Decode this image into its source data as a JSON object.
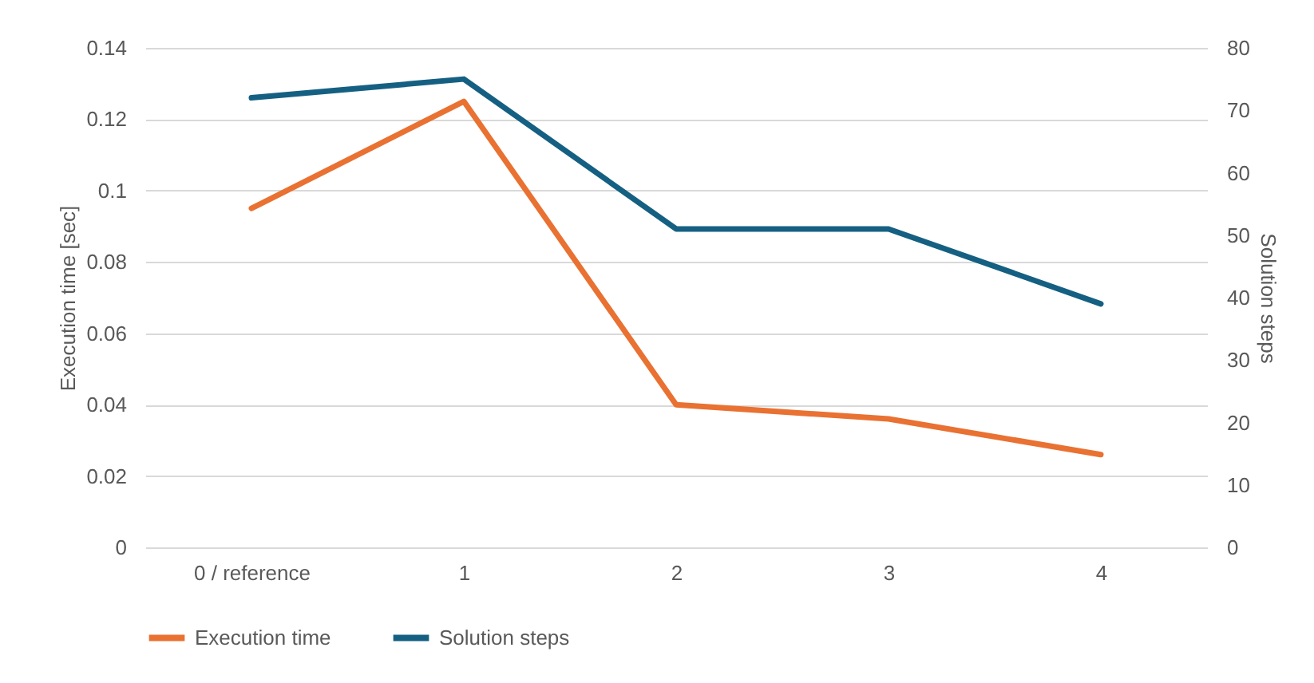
{
  "chart_data": {
    "type": "line",
    "categories": [
      "0 / reference",
      "1",
      "2",
      "3",
      "4"
    ],
    "series": [
      {
        "name": "Execution time",
        "color": "#e97132",
        "values": [
          0.095,
          0.125,
          0.04,
          0.036,
          0.026
        ]
      },
      {
        "name": "Solution steps",
        "color": "#156082",
        "axis": "y2",
        "values": [
          72,
          75,
          51,
          51,
          39
        ]
      }
    ],
    "ylabel": "Execution time [sec]",
    "y2label": "Solution steps",
    "ylim": [
      0,
      0.14
    ],
    "yticks": [
      0,
      0.02,
      0.04,
      0.06,
      0.08,
      0.1,
      0.12,
      0.14
    ],
    "y2lim": [
      0,
      80
    ],
    "y2ticks": [
      0,
      10,
      20,
      30,
      40,
      50,
      60,
      70,
      80
    ],
    "grid": "y",
    "legend": "bottom"
  }
}
